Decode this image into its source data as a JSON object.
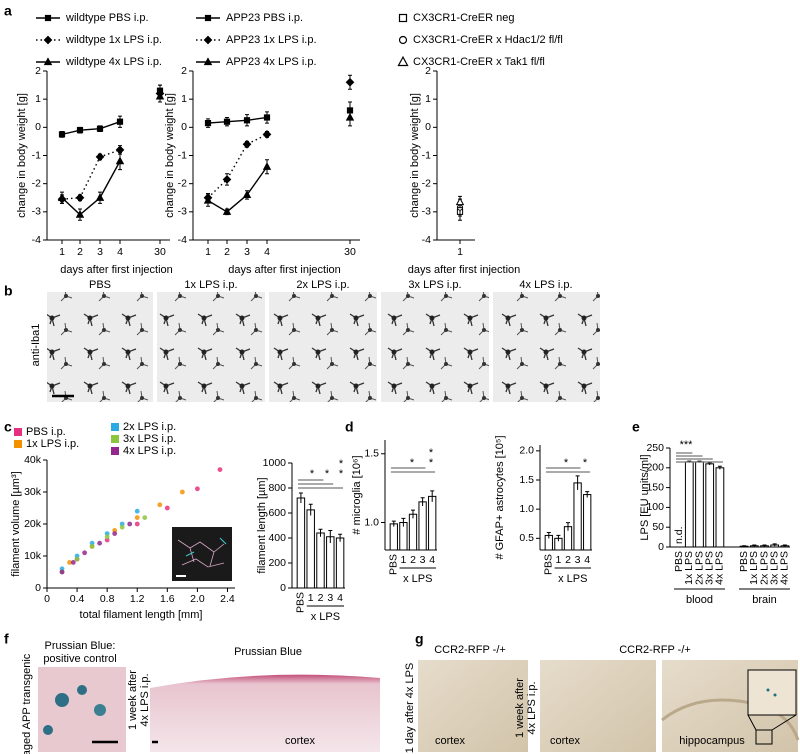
{
  "figure": {
    "panel_labels": [
      "a",
      "b",
      "c",
      "d",
      "e",
      "f",
      "g"
    ],
    "b": {
      "stain": "anti-Iba1",
      "titles": [
        "PBS",
        "1x LPS i.p.",
        "2x LPS i.p.",
        "3x LPS i.p.",
        "4x LPS i.p."
      ]
    },
    "f": {
      "control_title": [
        "Prussian Blue:",
        "positive control"
      ],
      "control_label": "aged APP transgenic",
      "time_label": [
        "1 week after",
        "4x LPS i.p."
      ],
      "title": "Prussian Blue",
      "region": "cortex"
    },
    "g": {
      "left_title": "CCR2-RFP -/+",
      "left_time": "1 day after 4x LPS",
      "left_region": "cortex",
      "right_title": "CCR2-RFP -/+",
      "right_time": [
        "1 week after",
        "4x LPS i.p."
      ],
      "right_regions": [
        "cortex",
        "hippocampus"
      ]
    }
  },
  "chart_data": [
    {
      "type": "line",
      "ylabel": "change in body weight [g]",
      "xlabel": "days after first injection",
      "categories": [
        "1",
        "2",
        "3",
        "4",
        null,
        "30"
      ],
      "ylim": [
        -4,
        2
      ],
      "yticks": [
        -4,
        -3,
        -2,
        -1,
        0,
        1,
        2
      ],
      "series": [
        {
          "name": "wildtype PBS i.p.",
          "color": "#000000",
          "fill": "#000000",
          "marker": "square",
          "dash": "solid",
          "values": [
            -0.25,
            -0.1,
            -0.05,
            0.2,
            null,
            1.3
          ],
          "errors": [
            0.1,
            0.1,
            0.1,
            0.2,
            null,
            0.2
          ]
        },
        {
          "name": "wildtype 1x LPS i.p.",
          "color": "#000000",
          "fill": "#000000",
          "marker": "diamond",
          "dash": "dotted",
          "values": [
            -2.55,
            -2.5,
            -1.05,
            -0.8,
            null,
            1.2
          ],
          "errors": [
            0.15,
            0.1,
            0.1,
            0.15,
            null,
            0.3
          ]
        },
        {
          "name": "wildtype 4x LPS i.p.",
          "color": "#000000",
          "fill": "#000000",
          "marker": "triangle",
          "dash": "solid",
          "values": [
            -2.5,
            -3.1,
            -2.5,
            -1.2,
            null,
            1.1
          ],
          "errors": [
            0.2,
            0.2,
            0.2,
            0.3,
            null,
            0.2
          ]
        }
      ]
    },
    {
      "type": "line",
      "ylabel": "change in body weight [g]",
      "xlabel": "days after first injection",
      "categories": [
        "1",
        "2",
        "3",
        "4",
        null,
        "30"
      ],
      "ylim": [
        -4,
        2
      ],
      "yticks": [
        -4,
        -3,
        -2,
        -1,
        0,
        1,
        2
      ],
      "series": [
        {
          "name": "APP23 PBS i.p.",
          "color": "#000000",
          "fill": "#000000",
          "marker": "square",
          "dash": "solid",
          "values": [
            0.15,
            0.2,
            0.25,
            0.35,
            null,
            0.6
          ],
          "errors": [
            0.15,
            0.15,
            0.2,
            0.2,
            null,
            0.3
          ]
        },
        {
          "name": "APP23 1x LPS i.p.",
          "color": "#000000",
          "fill": "#000000",
          "marker": "diamond",
          "dash": "dotted",
          "values": [
            -2.5,
            -1.85,
            -0.6,
            -0.25,
            null,
            1.6
          ],
          "errors": [
            0.15,
            0.2,
            0.1,
            0.1,
            null,
            0.25
          ]
        },
        {
          "name": "APP23 4x LPS i.p.",
          "color": "#000000",
          "fill": "#000000",
          "marker": "triangle",
          "dash": "solid",
          "values": [
            -2.6,
            -3.0,
            -2.4,
            -1.4,
            null,
            0.35
          ],
          "errors": [
            0.2,
            0.1,
            0.15,
            0.25,
            null,
            0.3
          ]
        }
      ]
    },
    {
      "type": "line",
      "ylabel": "change in body weight [g]",
      "xlabel": "days after first injection",
      "categories": [
        "1"
      ],
      "ylim": [
        -4,
        2
      ],
      "yticks": [
        -4,
        -3,
        -2,
        -1,
        0,
        1,
        2
      ],
      "series": [
        {
          "name": "CX3CR1-CreER neg",
          "color": "#000000",
          "fill": "#ffffff",
          "marker": "square",
          "dash": "none",
          "values": [
            -3.0
          ],
          "errors": [
            0.3
          ]
        },
        {
          "name": "CX3CR1-CreER x Hdac1/2 fl/fl",
          "color": "#000000",
          "fill": "#ffffff",
          "marker": "circle",
          "dash": "none",
          "values": [
            -2.85
          ],
          "errors": [
            0.3
          ]
        },
        {
          "name": "CX3CR1-CreER x Tak1 fl/fl",
          "color": "#000000",
          "fill": "#ffffff",
          "marker": "triangle",
          "dash": "none",
          "values": [
            -2.65
          ],
          "errors": [
            0.2
          ]
        }
      ]
    },
    {
      "type": "scatter",
      "xlabel": "total filament length [mm]",
      "ylabel": "filament volume [µm³]",
      "xlim": [
        0,
        2.5
      ],
      "xticks": [
        0,
        0.4,
        0.8,
        1.2,
        1.6,
        {
          "value": 2,
          "label": "2.0"
        },
        2.4
      ],
      "ylim": [
        0,
        40000
      ],
      "yticks": [
        0,
        {
          "value": 10000,
          "label": "10k"
        },
        {
          "value": 20000,
          "label": "20k"
        },
        {
          "value": 30000,
          "label": "30k"
        },
        {
          "value": 40000,
          "label": "40k"
        }
      ],
      "series": [
        {
          "name": "PBS i.p.",
          "color": "#e6307f",
          "x": [
            0.4,
            0.8,
            1.2,
            1.6,
            2.0,
            2.3
          ],
          "values": [
            9000,
            15000,
            20000,
            25000,
            31000,
            37000
          ]
        },
        {
          "name": "1x LPS i.p.",
          "color": "#f39200",
          "x": [
            0.3,
            0.6,
            0.9,
            1.2,
            1.5,
            1.8
          ],
          "values": [
            8000,
            13000,
            18000,
            22000,
            26000,
            30000
          ]
        },
        {
          "name": "2x LPS i.p.",
          "color": "#29abe2",
          "x": [
            0.2,
            0.4,
            0.6,
            0.8,
            1.0,
            1.2
          ],
          "values": [
            6000,
            10000,
            14000,
            17000,
            20000,
            24000
          ]
        },
        {
          "name": "3x LPS i.p.",
          "color": "#8cc63f",
          "x": [
            0.2,
            0.4,
            0.6,
            0.8,
            1.0,
            1.3
          ],
          "values": [
            5000,
            9000,
            13000,
            16000,
            19000,
            22000
          ]
        },
        {
          "name": "4x LPS i.p.",
          "color": "#93278f",
          "x": [
            0.2,
            0.35,
            0.5,
            0.7,
            0.9,
            1.1
          ],
          "values": [
            5000,
            8000,
            11000,
            14000,
            17000,
            20000
          ]
        }
      ]
    },
    {
      "type": "bar",
      "ylabel": "filament length [µm]",
      "xlabel": "x LPS",
      "color": "#ffffff",
      "categories": [
        "PBS",
        "1",
        "2",
        "3",
        "4"
      ],
      "values": [
        720,
        625,
        440,
        410,
        400
      ],
      "errors": [
        40,
        45,
        30,
        50,
        30
      ],
      "ylim": [
        0,
        1000
      ],
      "yticks": [
        0,
        200,
        400,
        600,
        800,
        1000
      ],
      "significance": [
        "*",
        "*",
        "*",
        "*"
      ]
    },
    {
      "type": "bar",
      "ylabel": "# microglia [10⁶]",
      "xlabel": "x LPS",
      "color": "#ffffff",
      "categories": [
        "PBS",
        "1",
        "2",
        "3",
        "4"
      ],
      "values": [
        0.99,
        1.0,
        1.06,
        1.15,
        1.19
      ],
      "errors": [
        0.02,
        0.03,
        0.03,
        0.03,
        0.04
      ],
      "ylim": [
        0.8,
        1.6
      ],
      "yticks": [
        {
          "value": 1,
          "label": "1.0"
        },
        1.5
      ],
      "significance": [
        "*",
        "*",
        "*"
      ]
    },
    {
      "type": "bar",
      "ylabel": "# GFAP+ astrocytes [10⁵]",
      "xlabel": "x LPS",
      "color": "#ffffff",
      "categories": [
        "PBS",
        "1",
        "2",
        "3",
        "4"
      ],
      "values": [
        0.55,
        0.5,
        0.7,
        1.45,
        1.25
      ],
      "errors": [
        0.05,
        0.05,
        0.07,
        0.12,
        0.05
      ],
      "ylim": [
        0.3,
        2.1
      ],
      "yticks": [
        0.5,
        {
          "value": 1,
          "label": "1.0"
        },
        1.5,
        {
          "value": 2,
          "label": "2.0"
        }
      ],
      "significance": [
        "*",
        "*"
      ]
    },
    {
      "type": "bar",
      "ylabel": "LPS [EU units/ml]",
      "color": "#ffffff",
      "categories": [
        "PBS",
        "1x LPS",
        "2x LPS",
        "3x LPS",
        "4x LPS",
        "PBS",
        "1x LPS",
        "2x LPS",
        "3x LPS",
        "4x LPS"
      ],
      "values": [
        null,
        215,
        215,
        210,
        200,
        2,
        3,
        3,
        5,
        3
      ],
      "value_labels": [
        "n.d.",
        null,
        null,
        null,
        null,
        null,
        null,
        null,
        null,
        null
      ],
      "errors": [
        null,
        2,
        2,
        3,
        4,
        1,
        2,
        2,
        3,
        2
      ],
      "groups": [
        "blood",
        "brain"
      ],
      "ylim": [
        0,
        250
      ],
      "yticks": [
        0,
        50,
        100,
        150,
        200,
        250
      ],
      "significance": [
        "***"
      ]
    }
  ]
}
